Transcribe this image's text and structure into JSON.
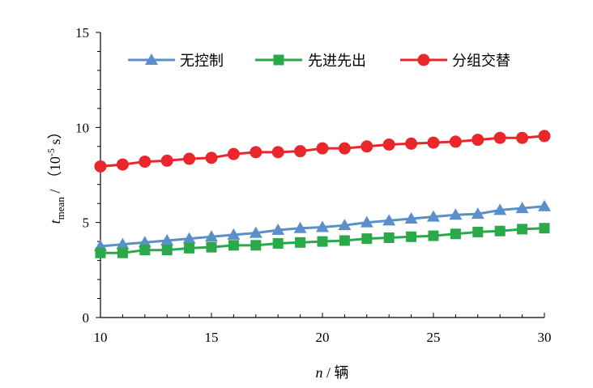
{
  "chart_data": {
    "type": "line",
    "xlabel": {
      "var": "n",
      "sep": " / ",
      "unit": "辆"
    },
    "ylabel": {
      "var": "t",
      "sub": "mean",
      "sep": " / ",
      "unit_pre": "（10",
      "unit_exp": "-5",
      "unit_post": " s）"
    },
    "xlim": [
      10,
      30
    ],
    "ylim": [
      0,
      15
    ],
    "xticks": [
      "10",
      "15",
      "20",
      "25",
      "30"
    ],
    "yticks": [
      "0",
      "5",
      "10",
      "15"
    ],
    "grid": false,
    "legend_position": "top",
    "x": [
      10,
      11,
      12,
      13,
      14,
      15,
      16,
      17,
      18,
      19,
      20,
      21,
      22,
      23,
      24,
      25,
      26,
      27,
      28,
      29,
      30
    ],
    "series": [
      {
        "name": "无控制",
        "marker": "triangle",
        "color": "#5b8fc9",
        "values": [
          3.75,
          3.85,
          3.95,
          4.05,
          4.15,
          4.25,
          4.35,
          4.45,
          4.6,
          4.7,
          4.75,
          4.85,
          5.0,
          5.1,
          5.2,
          5.3,
          5.4,
          5.45,
          5.65,
          5.75,
          5.85
        ]
      },
      {
        "name": "先进先出",
        "marker": "square",
        "color": "#2aa84a",
        "values": [
          3.4,
          3.4,
          3.55,
          3.55,
          3.65,
          3.7,
          3.8,
          3.8,
          3.9,
          3.95,
          4.0,
          4.05,
          4.15,
          4.2,
          4.25,
          4.3,
          4.4,
          4.5,
          4.55,
          4.65,
          4.7
        ]
      },
      {
        "name": "分组交替",
        "marker": "circle",
        "color": "#e8262c",
        "values": [
          7.95,
          8.05,
          8.2,
          8.25,
          8.35,
          8.4,
          8.6,
          8.7,
          8.7,
          8.75,
          8.9,
          8.9,
          9.0,
          9.1,
          9.15,
          9.2,
          9.25,
          9.35,
          9.45,
          9.45,
          9.55
        ]
      }
    ]
  }
}
